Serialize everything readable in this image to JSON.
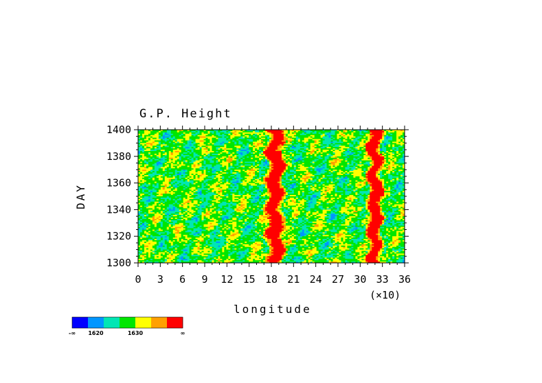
{
  "chart_data": {
    "type": "heatmap",
    "title": "G.P. Height",
    "xlabel": "longitude",
    "x_scale_note": "(×10)",
    "ylabel": "DAY",
    "xlim": [
      0,
      36
    ],
    "ylim": [
      1300,
      1400
    ],
    "x_ticks": [
      "0",
      "3",
      "6",
      "9",
      "12",
      "15",
      "18",
      "21",
      "24",
      "27",
      "30",
      "33",
      "36"
    ],
    "y_ticks": [
      "1300",
      "1320",
      "1340",
      "1360",
      "1380",
      "1400"
    ],
    "x_tick_values": [
      0,
      3,
      6,
      9,
      12,
      15,
      18,
      21,
      24,
      27,
      30,
      33,
      36
    ],
    "y_tick_values": [
      1300,
      1320,
      1340,
      1360,
      1380,
      1400
    ],
    "colorbar": {
      "colors": [
        "#0000ff",
        "#0096ff",
        "#00e6b4",
        "#00e600",
        "#ffff00",
        "#ffa000",
        "#ff0000"
      ],
      "labels": [
        "-∞",
        "1620",
        "1630",
        "∞"
      ]
    },
    "features": [
      {
        "description_hidden": true,
        "longitude_center": 18.5,
        "halfwidth": 1.2,
        "level": "high"
      },
      {
        "description_hidden": true,
        "longitude_center": 32.0,
        "halfwidth": 1.0,
        "level": "high"
      }
    ]
  }
}
